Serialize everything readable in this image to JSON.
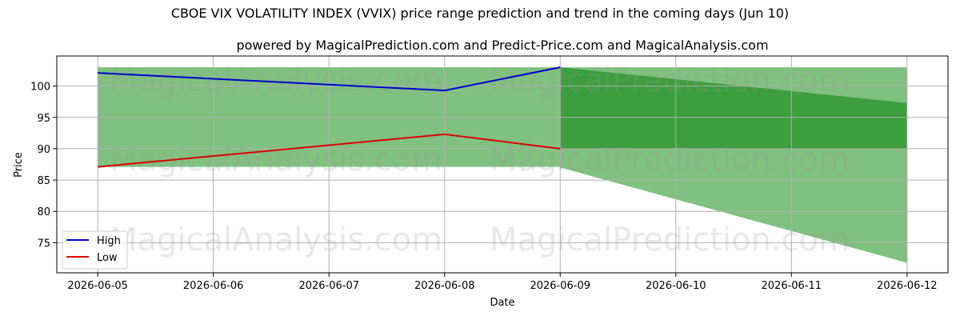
{
  "chart_data": {
    "type": "area",
    "title": "CBOE VIX VOLATILITY INDEX (VVIX) price range prediction and trend in the coming days (Jun 10)",
    "subtitle": "powered by MagicalPrediction.com and Predict-Price.com and MagicalAnalysis.com",
    "xlabel": "Date",
    "ylabel": "Price",
    "x": [
      "2026-06-05",
      "2026-06-06",
      "2026-06-07",
      "2026-06-08",
      "2026-06-09",
      "2026-06-10",
      "2026-06-11",
      "2026-06-12"
    ],
    "xlim": [
      "2026-06-04 15:30",
      "2026-06-12 08:30"
    ],
    "ylim": [
      70.2,
      104.8
    ],
    "yticks": [
      75,
      80,
      85,
      90,
      95,
      100
    ],
    "grid": true,
    "legend_placement": "lower-left",
    "series": [
      {
        "name": "High",
        "color": "#0000cc",
        "x": [
          "2026-06-05",
          "2026-06-08",
          "2026-06-09"
        ],
        "values": [
          102.1,
          99.3,
          103.0
        ]
      },
      {
        "name": "Low",
        "color": "#dd0000",
        "x": [
          "2026-06-05",
          "2026-06-08",
          "2026-06-09"
        ],
        "values": [
          87.1,
          92.3,
          90.0
        ]
      }
    ],
    "historical_range": {
      "x": [
        "2026-06-05",
        "2026-06-09"
      ],
      "upper": 103.0,
      "lower": 87.1,
      "color": "#80c080"
    },
    "prediction_outer_band": {
      "x": [
        "2026-06-09",
        "2026-06-12"
      ],
      "upper": [
        103.0,
        103.0
      ],
      "lower": [
        87.0,
        71.8
      ],
      "color": "#80c080"
    },
    "prediction_inner_band": {
      "x": [
        "2026-06-09",
        "2026-06-12"
      ],
      "upper": [
        103.0,
        97.3
      ],
      "lower": [
        90.0,
        90.0
      ],
      "color": "#3c9e3c"
    },
    "watermarks": [
      "MagicalAnalysis.com",
      "MagicalPrediction.com"
    ]
  }
}
